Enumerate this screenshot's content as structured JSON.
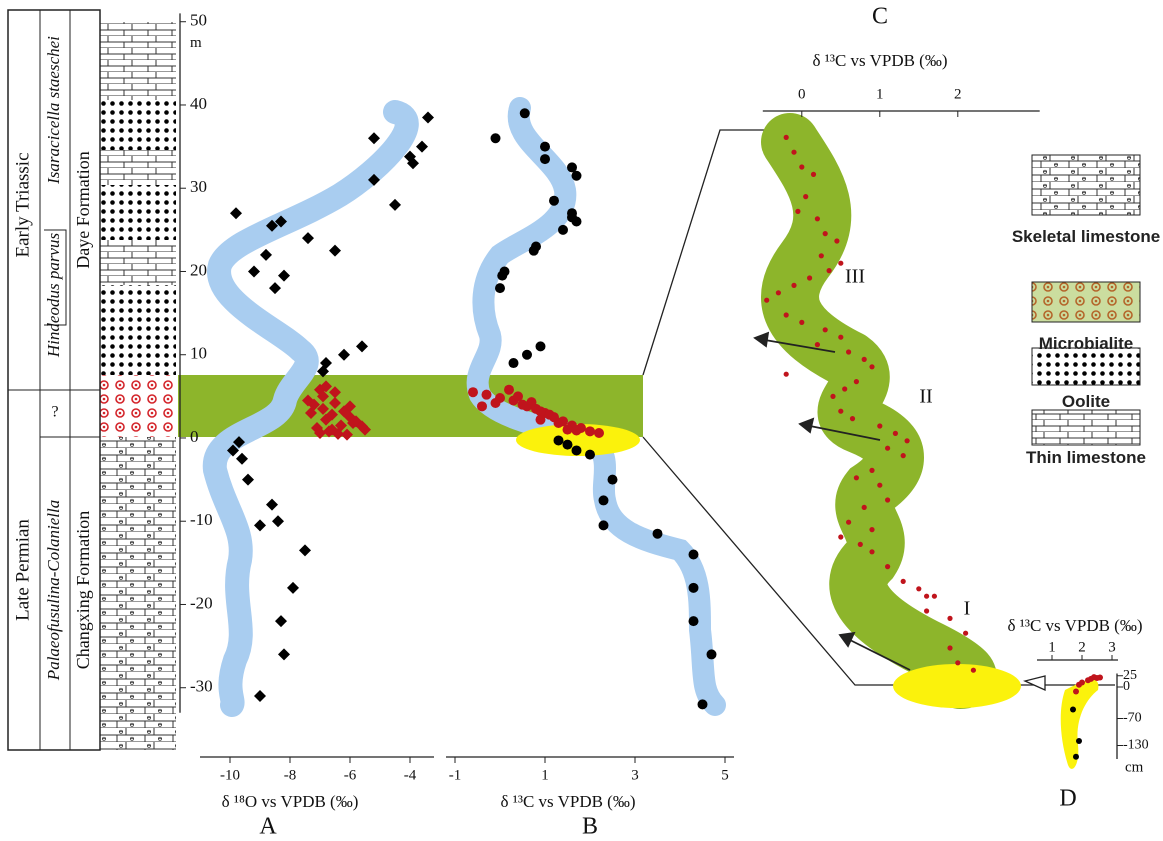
{
  "column": {
    "periods": [
      "Early Triassic",
      "Late Permian"
    ],
    "zones": [
      "Isaracicella staeschei",
      "Hindeodus parvus",
      "?",
      "Palaeofusulina-Colaniella"
    ],
    "formations": [
      "Daye Formation",
      "Changxing Formation"
    ]
  },
  "legend": {
    "items": [
      "Skeletal limestone",
      "Microbialite",
      "Oolite",
      "Thin limestone"
    ]
  },
  "chart_data": [
    {
      "type": "scatter",
      "title": "A",
      "x_label": "δ ¹⁸O vs VPDB (‰)",
      "y_label": "m",
      "xlim": [
        -11,
        -3.2
      ],
      "xticks": [
        -10,
        -8,
        -6,
        -4
      ],
      "ylim": [
        -33,
        51
      ],
      "yticks": [
        50,
        40,
        30,
        20,
        10,
        0,
        -10,
        -20,
        -30
      ],
      "series": [
        {
          "color": "#000000",
          "marker": "diamond",
          "x": [
            -3.4,
            -5.2,
            -3.6,
            -4.0,
            -3.9,
            -5.2,
            -4.5,
            -9.8,
            -8.6,
            -8.3,
            -7.4,
            -6.5,
            -8.8,
            -9.2,
            -8.2,
            -8.5,
            -5.6,
            -6.2,
            -6.8,
            -6.9,
            -9.7,
            -9.9,
            -9.6,
            -9.4,
            -8.6,
            -9.0,
            -8.4,
            -7.5,
            -7.9,
            -8.3,
            -8.2,
            -9.0
          ],
          "values": [
            38.5,
            36,
            35,
            33.8,
            33,
            31,
            28,
            27,
            25.5,
            26,
            24,
            22.5,
            22,
            20,
            19.5,
            18,
            11,
            10,
            9,
            8,
            -0.5,
            -1.5,
            -2.5,
            -5,
            -8,
            -10.5,
            -10,
            -13.5,
            -18,
            -22,
            -26,
            -31
          ]
        },
        {
          "color": "#c0141c",
          "marker": "diamond",
          "x": [
            -7.4,
            -7.0,
            -6.8,
            -6.5,
            -6.9,
            -7.2,
            -6.6,
            -6.2,
            -6.0,
            -5.8,
            -5.5,
            -6.3,
            -7.1,
            -6.7,
            -6.4,
            -5.9,
            -6.1,
            -6.8,
            -7.3,
            -6.5,
            -6.9,
            -6.0,
            -5.6,
            -7.0,
            -6.6
          ],
          "values": [
            4.5,
            5.8,
            6.2,
            5.5,
            3.5,
            4.0,
            2.8,
            3.2,
            2.5,
            2.0,
            1.0,
            1.5,
            1.2,
            0.8,
            0.5,
            1.8,
            0.4,
            2.2,
            3.0,
            4.2,
            5.0,
            3.8,
            1.4,
            0.6,
            1.0
          ]
        }
      ]
    },
    {
      "type": "scatter",
      "title": "B",
      "x_label": "δ ¹³C vs VPDB (‰)",
      "xlim": [
        -1.2,
        5.2
      ],
      "xticks": [
        -1,
        1,
        3,
        5
      ],
      "ylim": [
        -33,
        51
      ],
      "series": [
        {
          "color": "#000000",
          "marker": "circle",
          "x": [
            0.55,
            -0.1,
            1.0,
            1.0,
            1.6,
            1.7,
            1.2,
            1.6,
            1.6,
            1.7,
            1.4,
            0.8,
            0.75,
            0.1,
            0.05,
            0.0,
            0.9,
            0.6,
            0.3,
            1.3,
            1.5,
            1.7,
            2.0,
            2.5,
            2.3,
            2.3,
            3.5,
            4.3,
            4.3,
            4.3,
            4.7,
            4.5
          ],
          "values": [
            39,
            36,
            35,
            33.5,
            32.5,
            31.5,
            28.5,
            27,
            26.5,
            26,
            25,
            23,
            22.5,
            20,
            19.5,
            18,
            11,
            10,
            9,
            -0.3,
            -0.8,
            -1.5,
            -2,
            -5,
            -7.5,
            -10.5,
            -11.5,
            -14,
            -18,
            -22,
            -26,
            -32
          ]
        },
        {
          "color": "#c0141c",
          "marker": "circle",
          "x": [
            -0.6,
            -0.3,
            0.0,
            0.3,
            0.5,
            0.2,
            -0.1,
            0.6,
            0.8,
            1.0,
            1.2,
            0.9,
            1.4,
            1.6,
            1.8,
            2.0,
            2.2,
            1.5,
            1.1,
            0.7,
            0.4,
            1.3,
            1.7,
            -0.4,
            0.9
          ],
          "values": [
            5.5,
            5.2,
            4.8,
            4.5,
            4.0,
            5.8,
            4.2,
            3.8,
            3.5,
            3.0,
            2.5,
            3.2,
            2.0,
            1.5,
            1.2,
            0.8,
            0.6,
            1.0,
            2.8,
            4.3,
            5.0,
            1.8,
            0.9,
            3.8,
            2.2
          ]
        }
      ]
    },
    {
      "type": "scatter",
      "title": "C",
      "x_label": "δ ¹³C vs VPDB (‰)",
      "xlim": [
        -0.5,
        3.05
      ],
      "xticks": [
        0,
        1,
        2
      ],
      "ylim": [
        0,
        7.5
      ],
      "annotations": [
        "I",
        "II",
        "III"
      ],
      "series": [
        {
          "color": "#c0141c",
          "marker": "circle",
          "x": [
            -0.2,
            -0.1,
            0.0,
            0.15,
            0.05,
            -0.05,
            0.2,
            0.3,
            0.45,
            0.25,
            0.35,
            0.1,
            -0.1,
            -0.3,
            -0.45,
            -0.2,
            0.0,
            0.3,
            0.5,
            0.2,
            0.6,
            0.8,
            0.9,
            0.7,
            0.55,
            0.4,
            0.5,
            0.65,
            1.0,
            1.2,
            1.35,
            1.1,
            1.3,
            0.9,
            0.7,
            1.0,
            1.1,
            0.8,
            0.6,
            0.5,
            0.75,
            0.9,
            1.1,
            1.3,
            1.5,
            1.7,
            1.6,
            1.9,
            2.1,
            1.9,
            2.0,
            2.2,
            0.9,
            1.6,
            -0.2,
            0.5
          ],
          "values": [
            7.4,
            7.2,
            7.0,
            6.9,
            6.6,
            6.4,
            6.3,
            6.1,
            6.0,
            5.8,
            5.6,
            5.5,
            5.4,
            5.3,
            5.2,
            5.0,
            4.9,
            4.8,
            4.7,
            4.6,
            4.5,
            4.4,
            4.3,
            4.1,
            4.0,
            3.9,
            3.7,
            3.6,
            3.5,
            3.4,
            3.3,
            3.2,
            3.1,
            2.9,
            2.8,
            2.7,
            2.5,
            2.4,
            2.2,
            2.0,
            1.9,
            1.8,
            1.6,
            1.4,
            1.3,
            1.2,
            1.0,
            0.9,
            0.7,
            0.5,
            0.3,
            0.2,
            2.1,
            1.2,
            4.2,
            5.7
          ]
        }
      ]
    },
    {
      "type": "scatter",
      "title": "D",
      "x_label": "δ ¹³C vs VPDB (‰)",
      "y_label": "cm",
      "xlim": [
        0.5,
        3.2
      ],
      "xticks": [
        1,
        2,
        3
      ],
      "ylim": [
        -160,
        30
      ],
      "yticks": [
        25,
        0,
        -70,
        -130
      ],
      "series": [
        {
          "color": "#000000",
          "marker": "circle",
          "x": [
            1.7,
            1.9,
            1.8
          ],
          "values": [
            -50,
            -120,
            -155
          ]
        },
        {
          "color": "#c0141c",
          "marker": "circle",
          "x": [
            2.5,
            2.3,
            2.2,
            2.0,
            1.9,
            1.8,
            2.4,
            2.6
          ],
          "values": [
            20,
            18,
            15,
            10,
            5,
            -10,
            22,
            21
          ]
        }
      ]
    }
  ]
}
